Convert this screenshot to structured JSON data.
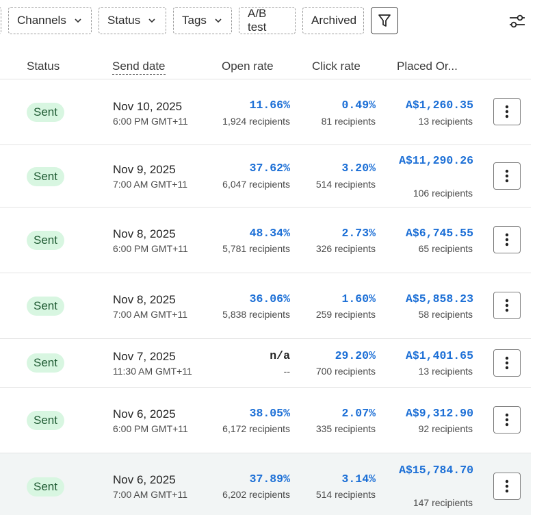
{
  "filters": [
    {
      "label": "Channels",
      "has_dropdown": true
    },
    {
      "label": "Status",
      "has_dropdown": true
    },
    {
      "label": "Tags",
      "has_dropdown": true
    },
    {
      "label": "A/B test",
      "has_dropdown": false
    },
    {
      "label": "Archived",
      "has_dropdown": false
    }
  ],
  "icons": {
    "filter": "filter-funnel-icon",
    "settings": "sliders-settings-icon",
    "more": "vertical-ellipsis-icon",
    "chevron": "chevron-down-icon"
  },
  "colors": {
    "accent": "#1c6fd6",
    "badge_bg": "#d8f6e1",
    "badge_text": "#1e5a32",
    "highlight_row": "#f2f5f5"
  },
  "columns": {
    "status": "Status",
    "send_date": "Send date",
    "open_rate": "Open rate",
    "click_rate": "Click rate",
    "placed_orders": "Placed Or..."
  },
  "rows": [
    {
      "status": "Sent",
      "date": "Nov 10, 2025",
      "time": "6:00 PM GMT+11",
      "open_rate": "11.66%",
      "open_sub": "1,924 recipients",
      "click_rate": "0.49%",
      "click_sub": "81 recipients",
      "orders": "A$1,260.35",
      "orders_sub": "13 recipients"
    },
    {
      "status": "Sent",
      "date": "Nov 9, 2025",
      "time": "7:00 AM GMT+11",
      "open_rate": "37.62%",
      "open_sub": "6,047 recipients",
      "click_rate": "3.20%",
      "click_sub": "514 recipients",
      "orders": "A$11,290.26",
      "orders_sub": "106 recipients"
    },
    {
      "status": "Sent",
      "date": "Nov 8, 2025",
      "time": "6:00 PM GMT+11",
      "open_rate": "48.34%",
      "open_sub": "5,781 recipients",
      "click_rate": "2.73%",
      "click_sub": "326 recipients",
      "orders": "A$6,745.55",
      "orders_sub": "65 recipients"
    },
    {
      "status": "Sent",
      "date": "Nov 8, 2025",
      "time": "7:00 AM GMT+11",
      "open_rate": "36.06%",
      "open_sub": "5,838 recipients",
      "click_rate": "1.60%",
      "click_sub": "259 recipients",
      "orders": "A$5,858.23",
      "orders_sub": "58 recipients"
    },
    {
      "status": "Sent",
      "date": "Nov 7, 2025",
      "time": "11:30 AM GMT+11",
      "open_rate": "n/a",
      "open_sub": "--",
      "click_rate": "29.20%",
      "click_sub": "700 recipients",
      "orders": "A$1,401.65",
      "orders_sub": "13 recipients"
    },
    {
      "status": "Sent",
      "date": "Nov 6, 2025",
      "time": "6:00 PM GMT+11",
      "open_rate": "38.05%",
      "open_sub": "6,172 recipients",
      "click_rate": "2.07%",
      "click_sub": "335 recipients",
      "orders": "A$9,312.90",
      "orders_sub": "92 recipients"
    },
    {
      "status": "Sent",
      "date": "Nov 6, 2025",
      "time": "7:00 AM GMT+11",
      "open_rate": "37.89%",
      "open_sub": "6,202 recipients",
      "click_rate": "3.14%",
      "click_sub": "514 recipients",
      "orders": "A$15,784.70",
      "orders_sub": "147 recipients"
    }
  ]
}
